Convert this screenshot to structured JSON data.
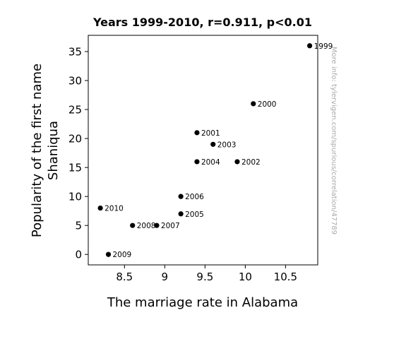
{
  "chart_data": {
    "type": "scatter",
    "title": "Years 1999-2010, r=0.911, p<0.01",
    "xlabel": "The marriage rate in Alabama",
    "ylabel_lines": [
      "Popularity of the first name",
      "Shaniqua"
    ],
    "watermark": "More info: tylervigen.com/spurious/correlation/47789",
    "xlim": [
      8.05,
      10.9
    ],
    "ylim": [
      -1.8,
      37.8
    ],
    "xticks": [
      8.5,
      9,
      9.5,
      10,
      10.5
    ],
    "xtick_labels": [
      "8.5",
      "9",
      "9.5",
      "10",
      "10.5"
    ],
    "yticks": [
      0,
      5,
      10,
      15,
      20,
      25,
      30,
      35
    ],
    "ytick_labels": [
      "0",
      "5",
      "10",
      "15",
      "20",
      "25",
      "30",
      "35"
    ],
    "grid": false,
    "points": [
      {
        "label": "1999",
        "x": 10.8,
        "y": 36
      },
      {
        "label": "2000",
        "x": 10.1,
        "y": 26
      },
      {
        "label": "2001",
        "x": 9.4,
        "y": 21
      },
      {
        "label": "2002",
        "x": 9.9,
        "y": 16
      },
      {
        "label": "2003",
        "x": 9.6,
        "y": 19
      },
      {
        "label": "2004",
        "x": 9.4,
        "y": 16
      },
      {
        "label": "2005",
        "x": 9.2,
        "y": 7
      },
      {
        "label": "2006",
        "x": 9.2,
        "y": 10
      },
      {
        "label": "2007",
        "x": 8.9,
        "y": 5
      },
      {
        "label": "2008",
        "x": 8.6,
        "y": 5
      },
      {
        "label": "2009",
        "x": 8.3,
        "y": 0
      },
      {
        "label": "2010",
        "x": 8.2,
        "y": 8
      }
    ],
    "colors": {
      "point": "#000000",
      "axis": "#000000",
      "watermark": "#aaaaaa"
    }
  }
}
